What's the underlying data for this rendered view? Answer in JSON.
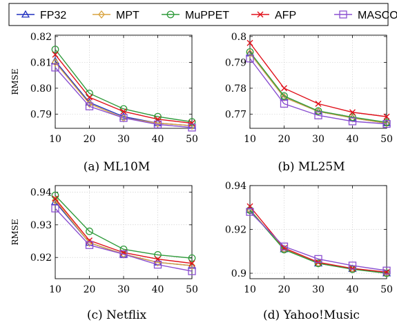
{
  "legend": [
    {
      "name": "FP32",
      "color": "#1f2fbf",
      "marker": "triangle"
    },
    {
      "name": "MPT",
      "color": "#d9a441",
      "marker": "diamond"
    },
    {
      "name": "MuPPET",
      "color": "#2e9a3a",
      "marker": "circle"
    },
    {
      "name": "AFP",
      "color": "#e0101a",
      "marker": "x"
    },
    {
      "name": "MASCOT",
      "color": "#8a4fd0",
      "marker": "square"
    }
  ],
  "chart_data": [
    {
      "type": "line",
      "caption": "(a) ML10M",
      "ylabel": "RMSE",
      "x": [
        10,
        20,
        30,
        40,
        50
      ],
      "xlim": [
        10,
        50
      ],
      "ylim": [
        0.7845,
        0.8205
      ],
      "yticks": [
        0.79,
        0.8,
        0.81,
        0.82
      ],
      "yticklabels": [
        "0.79",
        "0.80",
        "0.81",
        "0.82"
      ],
      "series": [
        {
          "name": "FP32",
          "values": [
            0.8105,
            0.7945,
            0.789,
            0.7865,
            0.7855
          ]
        },
        {
          "name": "MPT",
          "values": [
            0.81,
            0.794,
            0.7885,
            0.7865,
            0.7855
          ]
        },
        {
          "name": "MuPPET",
          "values": [
            0.815,
            0.798,
            0.792,
            0.789,
            0.787
          ]
        },
        {
          "name": "AFP",
          "values": [
            0.813,
            0.7965,
            0.791,
            0.788,
            0.7865
          ]
        },
        {
          "name": "MASCOT",
          "values": [
            0.808,
            0.793,
            0.7885,
            0.786,
            0.7848
          ]
        }
      ]
    },
    {
      "type": "line",
      "caption": "(b) ML25M",
      "ylabel": "",
      "x": [
        10,
        20,
        30,
        40,
        50
      ],
      "xlim": [
        10,
        50
      ],
      "ylim": [
        0.7645,
        0.8005
      ],
      "yticks": [
        0.77,
        0.78,
        0.79,
        0.8
      ],
      "yticklabels": [
        "0.77",
        "0.78",
        "0.79",
        "0.8"
      ],
      "series": [
        {
          "name": "FP32",
          "values": [
            0.7935,
            0.7765,
            0.771,
            0.7685,
            0.7665
          ]
        },
        {
          "name": "MPT",
          "values": [
            0.7935,
            0.7765,
            0.771,
            0.7685,
            0.7665
          ]
        },
        {
          "name": "MuPPET",
          "values": [
            0.794,
            0.777,
            0.7712,
            0.7688,
            0.7668
          ]
        },
        {
          "name": "AFP",
          "values": [
            0.7975,
            0.78,
            0.774,
            0.7707,
            0.769
          ]
        },
        {
          "name": "MASCOT",
          "values": [
            0.7915,
            0.774,
            0.7695,
            0.7672,
            0.7662
          ]
        }
      ]
    },
    {
      "type": "line",
      "caption": "(c) Netflix",
      "ylabel": "RMSE",
      "x": [
        10,
        20,
        30,
        40,
        50
      ],
      "xlim": [
        10,
        50
      ],
      "ylim": [
        0.9135,
        0.942
      ],
      "yticks": [
        0.92,
        0.93,
        0.94
      ],
      "yticklabels": [
        "0.92",
        "0.93",
        "0.94"
      ],
      "series": [
        {
          "name": "FP32",
          "values": [
            0.937,
            0.9245,
            0.921,
            0.9185,
            0.9175
          ]
        },
        {
          "name": "MPT",
          "values": [
            0.9375,
            0.9245,
            0.921,
            0.9185,
            0.9175
          ]
        },
        {
          "name": "MuPPET",
          "values": [
            0.939,
            0.928,
            0.9225,
            0.9208,
            0.9198
          ]
        },
        {
          "name": "AFP",
          "values": [
            0.938,
            0.9252,
            0.9215,
            0.9195,
            0.9182
          ]
        },
        {
          "name": "MASCOT",
          "values": [
            0.935,
            0.9238,
            0.921,
            0.9178,
            0.9158
          ]
        }
      ]
    },
    {
      "type": "line",
      "caption": "(d) Yahoo!Music",
      "ylabel": "",
      "x": [
        10,
        20,
        30,
        40,
        50
      ],
      "xlim": [
        10,
        50
      ],
      "ylim": [
        0.8975,
        0.94
      ],
      "yticks": [
        0.9,
        0.92,
        0.94
      ],
      "yticklabels": [
        "0.9",
        "0.92",
        "0.94"
      ],
      "series": [
        {
          "name": "FP32",
          "values": [
            0.929,
            0.911,
            0.9045,
            0.902,
            0.9
          ]
        },
        {
          "name": "MPT",
          "values": [
            0.929,
            0.911,
            0.9045,
            0.902,
            0.9
          ]
        },
        {
          "name": "MuPPET",
          "values": [
            0.9288,
            0.9108,
            0.9045,
            0.9018,
            0.9
          ]
        },
        {
          "name": "AFP",
          "values": [
            0.9305,
            0.9115,
            0.905,
            0.9022,
            0.9005
          ]
        },
        {
          "name": "MASCOT",
          "values": [
            0.928,
            0.9122,
            0.9065,
            0.9035,
            0.9012
          ]
        }
      ]
    }
  ]
}
